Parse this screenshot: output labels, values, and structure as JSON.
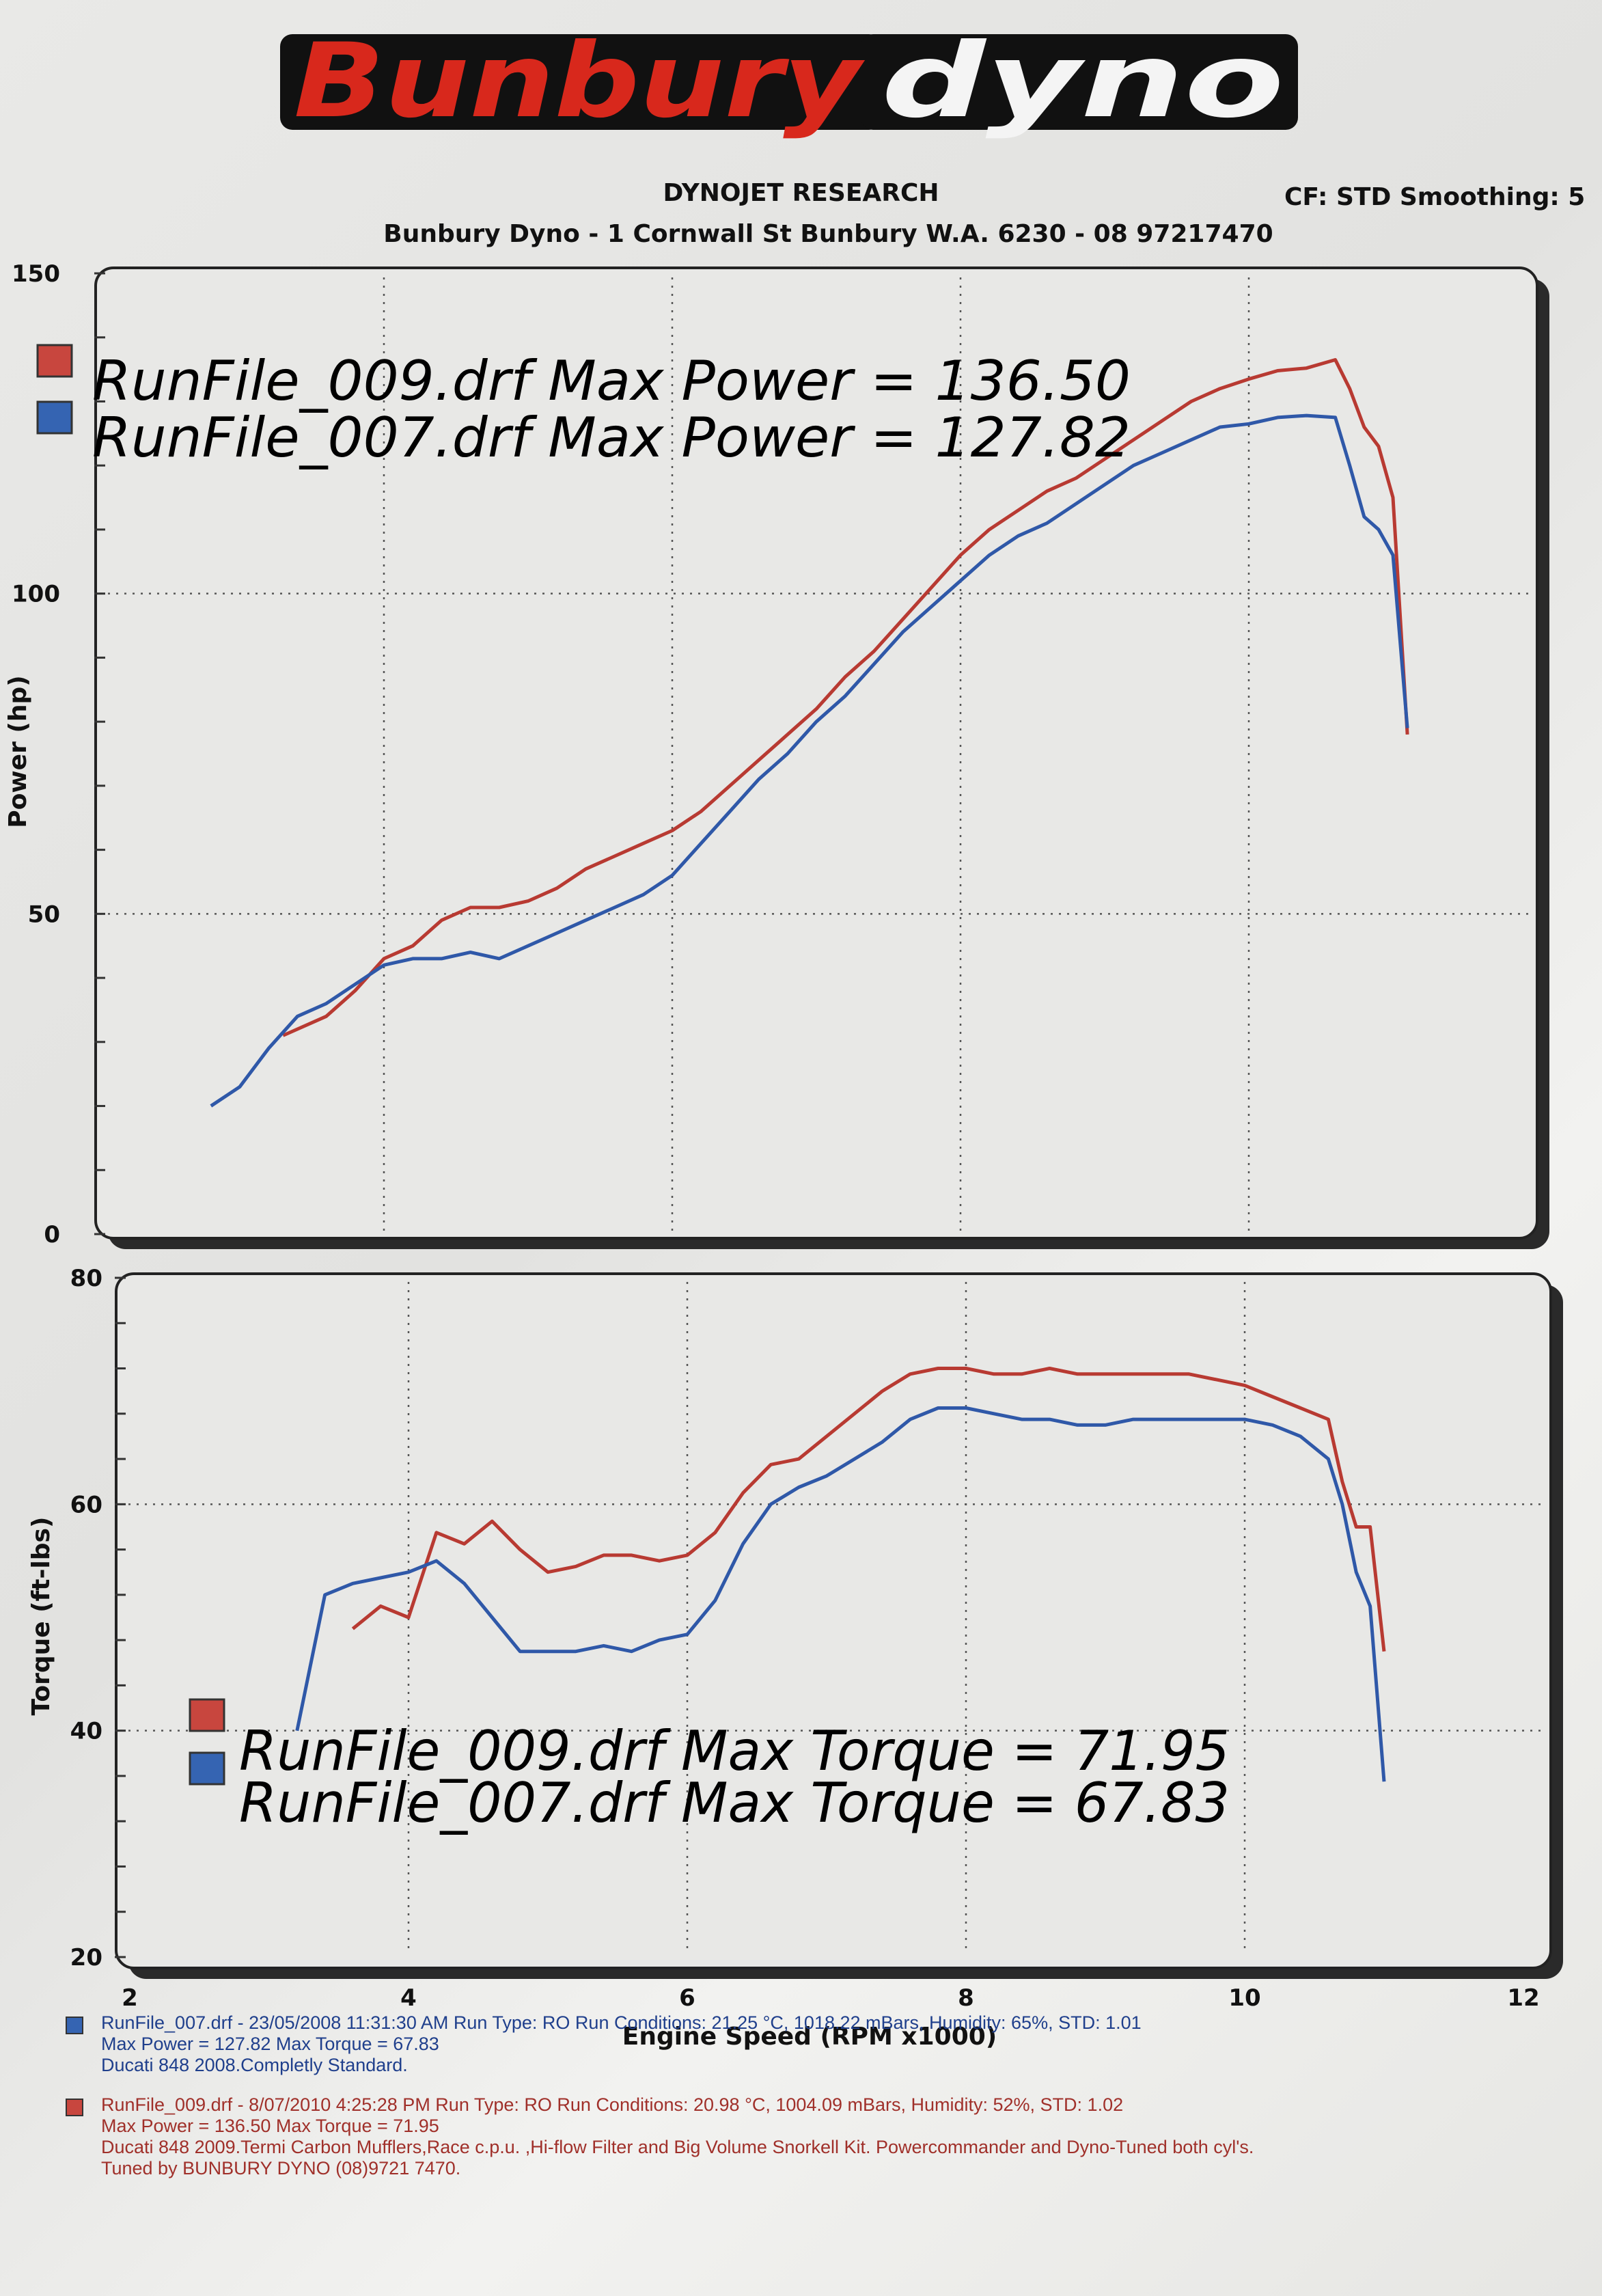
{
  "header": {
    "logo_left": "Bunbury",
    "logo_right": "dyno",
    "research": "DYNOJET RESEARCH",
    "cf_smoothing": "CF: STD  Smoothing: 5",
    "address": "Bunbury Dyno - 1 Cornwall St Bunbury W.A. 6230 - 08 97217470"
  },
  "colors": {
    "run009": "#b83a32",
    "run007": "#2f58a8",
    "logo_red": "#d8281c"
  },
  "chart_data": [
    {
      "type": "line",
      "ylabel": "Power (hp)",
      "xlabel": "Engine Speed (RPM x1000)",
      "xlim": [
        2,
        12
      ],
      "ylim": [
        0,
        150
      ],
      "xticks": [
        "2",
        "4",
        "6",
        "8",
        "10",
        "12"
      ],
      "yticks": [
        "0",
        "50",
        "100",
        "150"
      ],
      "grid": true,
      "legend": [
        "RunFile_009.drf Max Power = 136.50",
        "RunFile_007.drf Max Power = 127.82"
      ],
      "series": [
        {
          "name": "RunFile_009.drf",
          "color": "#b83a32",
          "x": [
            3.3,
            3.6,
            3.8,
            4.0,
            4.2,
            4.4,
            4.6,
            4.8,
            5.0,
            5.2,
            5.4,
            5.6,
            5.8,
            6.0,
            6.2,
            6.4,
            6.6,
            6.8,
            7.0,
            7.2,
            7.4,
            7.6,
            7.8,
            8.0,
            8.2,
            8.4,
            8.6,
            8.8,
            9.0,
            9.2,
            9.4,
            9.6,
            9.8,
            10.0,
            10.2,
            10.4,
            10.6,
            10.7,
            10.8,
            10.9,
            11.0,
            11.1
          ],
          "y": [
            31,
            34,
            38,
            43,
            45,
            49,
            51,
            51,
            52,
            54,
            57,
            59,
            61,
            63,
            66,
            70,
            74,
            78,
            82,
            87,
            91,
            96,
            101,
            106,
            110,
            113,
            116,
            118,
            121,
            124,
            127,
            130,
            132,
            133.5,
            134.8,
            135.2,
            136.5,
            132,
            126,
            123,
            115,
            78
          ]
        },
        {
          "name": "RunFile_007.drf",
          "color": "#2f58a8",
          "x": [
            2.8,
            3.0,
            3.2,
            3.4,
            3.6,
            3.8,
            4.0,
            4.2,
            4.4,
            4.6,
            4.8,
            5.0,
            5.2,
            5.4,
            5.6,
            5.8,
            6.0,
            6.2,
            6.4,
            6.6,
            6.8,
            7.0,
            7.2,
            7.4,
            7.6,
            7.8,
            8.0,
            8.2,
            8.4,
            8.6,
            8.8,
            9.0,
            9.2,
            9.4,
            9.6,
            9.8,
            10.0,
            10.2,
            10.4,
            10.6,
            10.7,
            10.8,
            10.9,
            11.0,
            11.1
          ],
          "y": [
            20,
            23,
            29,
            34,
            36,
            39,
            42,
            43,
            43,
            44,
            43,
            45,
            47,
            49,
            51,
            53,
            56,
            61,
            66,
            71,
            75,
            80,
            84,
            89,
            94,
            98,
            102,
            106,
            109,
            111,
            114,
            117,
            120,
            122,
            124,
            126,
            126.5,
            127.5,
            127.8,
            127.5,
            120,
            112,
            110,
            106,
            79
          ]
        }
      ]
    },
    {
      "type": "line",
      "ylabel": "Torque (ft-lbs)",
      "xlabel": "Engine Speed (RPM x1000)",
      "xlim": [
        2,
        12
      ],
      "ylim": [
        20,
        80
      ],
      "xticks": [
        "2",
        "4",
        "6",
        "8",
        "10",
        "12"
      ],
      "yticks": [
        "20",
        "40",
        "60",
        "80"
      ],
      "grid": true,
      "legend": [
        "RunFile_009.drf Max Torque = 71.95",
        "RunFile_007.drf Max Torque = 67.83"
      ],
      "series": [
        {
          "name": "RunFile_009.drf",
          "color": "#b83a32",
          "x": [
            3.6,
            3.8,
            4.0,
            4.2,
            4.4,
            4.6,
            4.8,
            5.0,
            5.2,
            5.4,
            5.6,
            5.8,
            6.0,
            6.2,
            6.4,
            6.6,
            6.8,
            7.0,
            7.2,
            7.4,
            7.6,
            7.8,
            8.0,
            8.2,
            8.4,
            8.6,
            8.8,
            9.0,
            9.2,
            9.4,
            9.6,
            9.8,
            10.0,
            10.2,
            10.4,
            10.6,
            10.7,
            10.8,
            10.9,
            11.0
          ],
          "y": [
            49,
            51,
            50,
            57.5,
            56.5,
            58.5,
            56,
            54,
            54.5,
            55.5,
            55.5,
            55,
            55.5,
            57.5,
            61,
            63.5,
            64,
            66,
            68,
            70,
            71.5,
            72,
            72,
            71.5,
            71.5,
            72,
            71.5,
            71.5,
            71.5,
            71.5,
            71.5,
            71,
            70.5,
            69.5,
            68.5,
            67.5,
            62,
            58,
            58,
            47
          ]
        },
        {
          "name": "RunFile_007.drf",
          "color": "#2f58a8",
          "x": [
            3.2,
            3.4,
            3.6,
            3.8,
            4.0,
            4.2,
            4.4,
            4.6,
            4.8,
            5.0,
            5.2,
            5.4,
            5.6,
            5.8,
            6.0,
            6.2,
            6.4,
            6.6,
            6.8,
            7.0,
            7.2,
            7.4,
            7.6,
            7.8,
            8.0,
            8.2,
            8.4,
            8.6,
            8.8,
            9.0,
            9.2,
            9.4,
            9.6,
            9.8,
            10.0,
            10.2,
            10.4,
            10.6,
            10.7,
            10.8,
            10.9,
            11.0
          ],
          "y": [
            40,
            52,
            53,
            53.5,
            54,
            55,
            53,
            50,
            47,
            47,
            47,
            47.5,
            47,
            48,
            48.5,
            51.5,
            56.5,
            60,
            61.5,
            62.5,
            64,
            65.5,
            67.5,
            68.5,
            68.5,
            68,
            67.5,
            67.5,
            67,
            67,
            67.5,
            67.5,
            67.5,
            67.5,
            67.5,
            67,
            66,
            64,
            60,
            54,
            51,
            35.5
          ]
        }
      ]
    }
  ],
  "footer": {
    "run007": {
      "line1": "RunFile_007.drf - 23/05/2008 11:31:30 AM  Run Type: RO  Run Conditions: 21.25 °C, 1018.22 mBars,  Humidity: 65%, STD: 1.01",
      "line2": "Max Power = 127.82  Max Torque = 67.83",
      "line3": "Ducati 848 2008.Completly Standard."
    },
    "run009": {
      "line1": "RunFile_009.drf - 8/07/2010 4:25:28 PM  Run Type: RO  Run Conditions: 20.98 °C, 1004.09 mBars,  Humidity: 52%, STD: 1.02",
      "line2": "Max Power = 136.50  Max Torque = 71.95",
      "line3": "Ducati 848 2009.Termi Carbon Mufflers,Race c.p.u. ,Hi-flow Filter and Big Volume Snorkell Kit. Powercommander and Dyno-Tuned both cyl's.",
      "line4": "Tuned by BUNBURY DYNO (08)9721 7470."
    }
  }
}
